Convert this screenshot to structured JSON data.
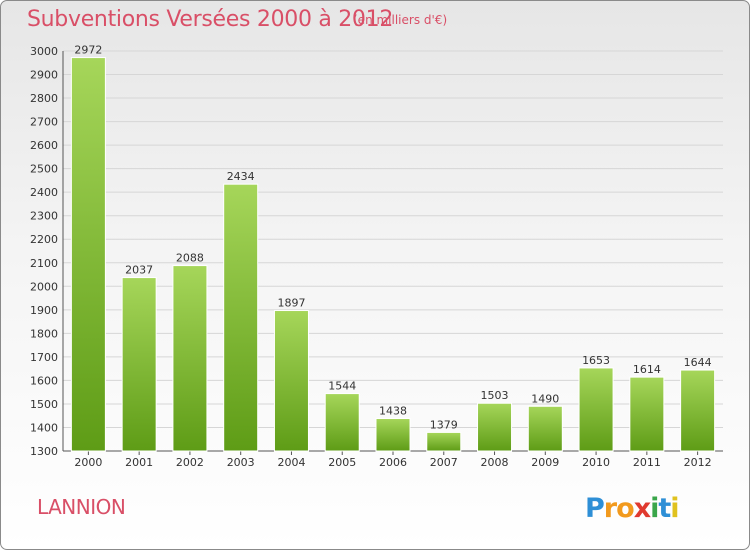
{
  "header": {
    "title": "Subventions Versées 2000 à 2012",
    "subtitle": "(en milliers d'€)"
  },
  "footer": {
    "town": "LANNION",
    "brand": "Proxiti"
  },
  "colors": {
    "title": "#d94f67",
    "bar_light": "#a6d65a",
    "bar_dark": "#5e9c16",
    "grid": "#d6d6d6"
  },
  "chart_data": {
    "type": "bar",
    "title": "Subventions Versées 2000 à 2012",
    "subtitle": "(en milliers d'€)",
    "xlabel": "",
    "ylabel": "",
    "categories": [
      "2000",
      "2001",
      "2002",
      "2003",
      "2004",
      "2005",
      "2006",
      "2007",
      "2008",
      "2009",
      "2010",
      "2011",
      "2012"
    ],
    "values": [
      2972,
      2037,
      2088,
      2434,
      1897,
      1544,
      1438,
      1379,
      1503,
      1490,
      1653,
      1614,
      1644
    ],
    "ylim": [
      1300,
      3000
    ],
    "yticks": [
      1300,
      1400,
      1500,
      1600,
      1700,
      1800,
      1900,
      2000,
      2100,
      2200,
      2300,
      2400,
      2500,
      2600,
      2700,
      2800,
      2900,
      3000
    ],
    "grid": true,
    "legend": "none"
  }
}
